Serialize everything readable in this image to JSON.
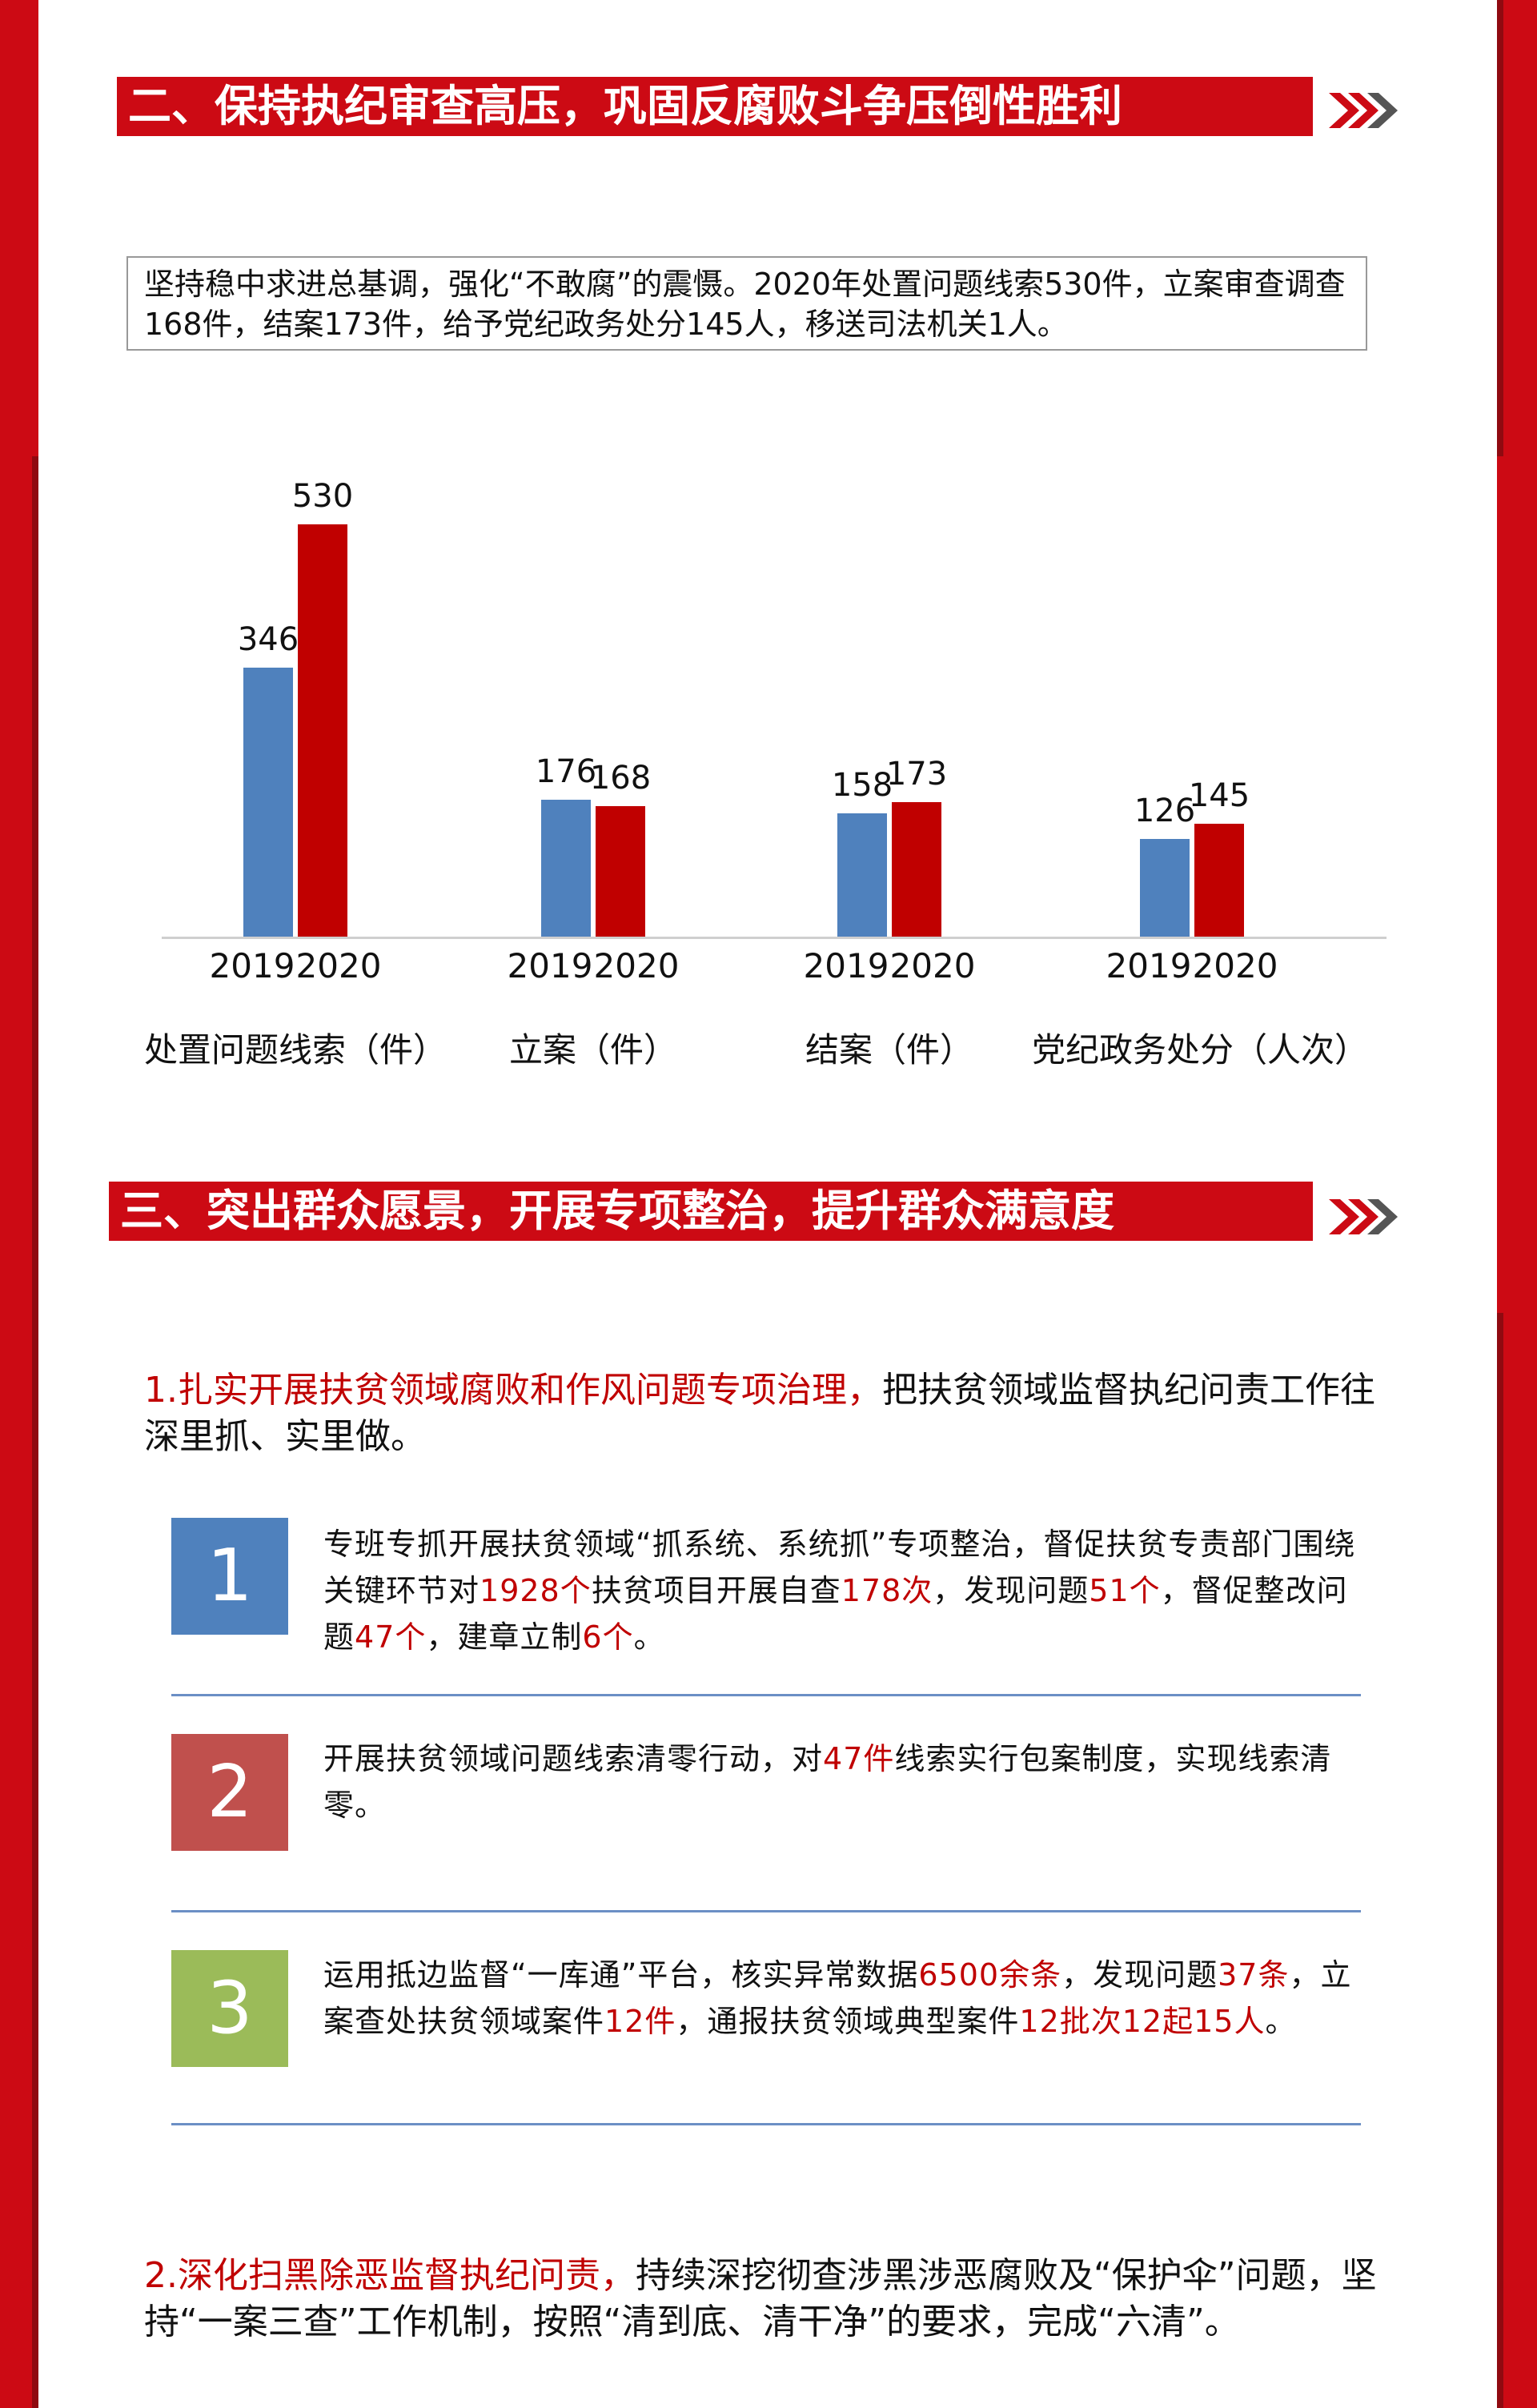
{
  "section2": {
    "title": "二、保持执纪审查高压，巩固反腐败斗争压倒性胜利",
    "intro": "坚持稳中求进总基调，强化“不敢腐”的震慑。2020年处置问题线索530件，立案审查调查168件，结案173件，给予党纪政务处分145人，移送司法机关1人。"
  },
  "chart_data": {
    "type": "bar",
    "categories": [
      "处置问题线索（件）",
      "立案（件）",
      "结案（件）",
      "党纪政务处分（人次）"
    ],
    "series": [
      {
        "name": "2019",
        "color": "#4f81bd",
        "values": [
          346,
          176,
          158,
          126
        ]
      },
      {
        "name": "2020",
        "color": "#c00000",
        "values": [
          530,
          168,
          173,
          145
        ]
      }
    ],
    "year_labels": [
      "2019",
      "2020"
    ],
    "ylim": [
      0,
      530
    ],
    "grid": false
  },
  "section3": {
    "title": "三、突出群众愿景，开展专项整治，提升群众满意度",
    "p1_red": "1.扎实开展扶贫领域腐败和作风问题专项治理，",
    "p1_rest": "把扶贫领域监督执纪问责工作往深里抓、实里做。",
    "items": [
      {
        "number": "1",
        "color": "#4f81bd",
        "segments": [
          {
            "t": "专班专抓开展扶贫领域“抓系统、系统抓”专项整治，督促扶贫专责部门围绕关键环节对",
            "red": false
          },
          {
            "t": "1928个",
            "red": true
          },
          {
            "t": "扶贫项目开展自查",
            "red": false
          },
          {
            "t": "178次",
            "red": true
          },
          {
            "t": "，发现问题",
            "red": false
          },
          {
            "t": "51个",
            "red": true
          },
          {
            "t": "，督促整改问题",
            "red": false
          },
          {
            "t": "47个",
            "red": true
          },
          {
            "t": "，建章立制",
            "red": false
          },
          {
            "t": "6个",
            "red": true
          },
          {
            "t": "。",
            "red": false
          }
        ]
      },
      {
        "number": "2",
        "color": "#c0504d",
        "segments": [
          {
            "t": "开展扶贫领域问题线索清零行动，对",
            "red": false
          },
          {
            "t": "47件",
            "red": true
          },
          {
            "t": "线索实行包案制度，实现线索清零。",
            "red": false
          }
        ]
      },
      {
        "number": "3",
        "color": "#9bbb59",
        "segments": [
          {
            "t": "运用抵边监督“一库通”平台，核实异常数据",
            "red": false
          },
          {
            "t": "6500余条",
            "red": true
          },
          {
            "t": "，发现问题",
            "red": false
          },
          {
            "t": "37条",
            "red": true
          },
          {
            "t": "，立案查处扶贫领域案件",
            "red": false
          },
          {
            "t": "12件",
            "red": true
          },
          {
            "t": "，通报扶贫领域典型案件",
            "red": false
          },
          {
            "t": "12批次12起15人",
            "red": true
          },
          {
            "t": "。",
            "red": false
          }
        ]
      }
    ],
    "p2_red": "2.深化扫黑除恶监督执纪问责，",
    "p2_rest": "持续深挖彻查涉黑涉恶腐败及“保护伞”问题，坚持“一案三查”工作机制，按照“清到底、清干净”的要求，完成“六清”。"
  },
  "icons": {
    "arrow": "double-chevron-right-icon"
  }
}
